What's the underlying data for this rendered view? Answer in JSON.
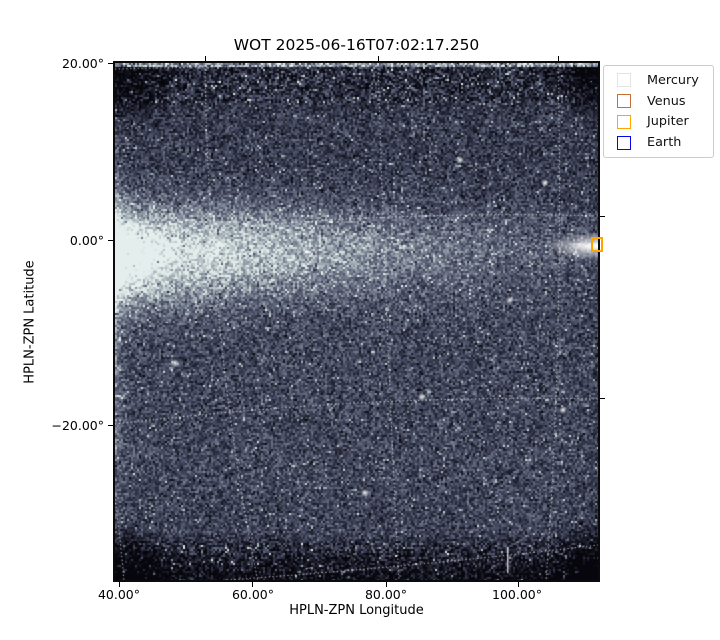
{
  "figure": {
    "title": "WOT 2025-06-16T07:02:17.250"
  },
  "axes": {
    "xlabel": "HPLN-ZPN Longitude",
    "ylabel": "HPLN-ZPN Latitude",
    "x_tick_labels": [
      "40.00°",
      "60.00°",
      "80.00°",
      "100.00°"
    ],
    "y_tick_labels": [
      "20.00°",
      "0.00°",
      "−20.00°"
    ]
  },
  "legend": {
    "items": [
      {
        "label": "Mercury",
        "color": "#e4e4e4"
      },
      {
        "label": "Venus",
        "color": "#c86f38"
      },
      {
        "label": "Jupiter",
        "color": "#ffa500"
      },
      {
        "label": "Earth",
        "color": "#0707ee"
      }
    ]
  },
  "chart_data": {
    "type": "heatmap",
    "title": "WOT 2025-06-16T07:02:17.250",
    "xlabel": "HPLN-ZPN Longitude",
    "ylabel": "HPLN-ZPN Latitude",
    "x_ticks_deg": [
      40,
      60,
      80,
      100
    ],
    "y_ticks_deg": [
      20,
      0,
      -20
    ],
    "xlim_deg": [
      39.3,
      111.7
    ],
    "ylim_deg": [
      -36.9,
      20.2
    ],
    "grid": "white dotted curved coordinate grid (ZPN projection, grid on)",
    "legend_position": "outside upper right",
    "colormap": "dark slate-blue starfield with pale cyan highlights",
    "visible_markers": [
      {
        "planet": "Jupiter",
        "approx_lon_deg": 111.5,
        "approx_lat_deg": -0.5,
        "color": "#ffa500",
        "clipped_at_right_edge": true
      }
    ],
    "features": {
      "bright_band": "Bright zodiacal-light band along ~0° latitude spanning full width, brightest at left edge, fading to the right",
      "bright_flare": "Saturated white wedge entering from right edge near 0° latitude (~111° longitude) beside the orange planet marker",
      "dark_edges": "Near-black vignetted detector corners and dark noisy top/bottom rows",
      "streaks": "Faint diagonal streaks through lower-left and central region",
      "stars": "Dense speckle noise with scattered white point sources"
    }
  }
}
